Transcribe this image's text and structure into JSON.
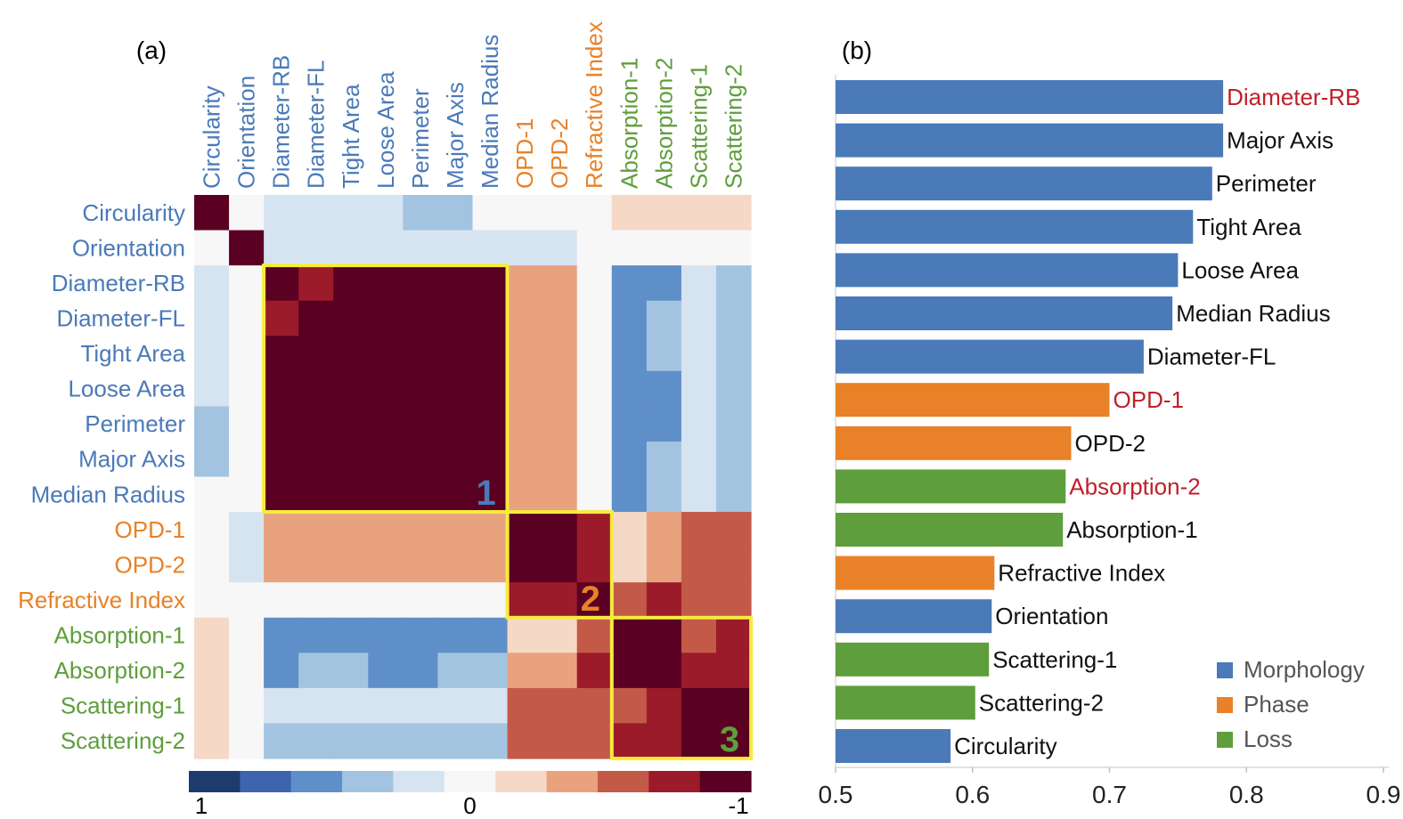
{
  "colors": {
    "morphology": "#4a7ab8",
    "phase": "#e88127",
    "loss": "#5e9e3c",
    "highlight_label": "#c01f2b",
    "box": "#f6ec3c",
    "scale": [
      "#1e3b6e",
      "#3e64ae",
      "#5f8fc8",
      "#a3c4e0",
      "#d6e4f1",
      "#f7f7f7",
      "#f6d8c6",
      "#e8a37e",
      "#c35a48",
      "#9b1b2a",
      "#5a0022"
    ]
  },
  "chart_data": [
    {
      "panel_label": "(a)",
      "type": "heatmap",
      "features": [
        {
          "name": "Circularity",
          "group": "morphology"
        },
        {
          "name": "Orientation",
          "group": "morphology"
        },
        {
          "name": "Diameter-RB",
          "group": "morphology"
        },
        {
          "name": "Diameter-FL",
          "group": "morphology"
        },
        {
          "name": "Tight Area",
          "group": "morphology"
        },
        {
          "name": "Loose Area",
          "group": "morphology"
        },
        {
          "name": "Perimeter",
          "group": "morphology"
        },
        {
          "name": "Major Axis",
          "group": "morphology"
        },
        {
          "name": "Median Radius",
          "group": "morphology"
        },
        {
          "name": "OPD-1",
          "group": "phase"
        },
        {
          "name": "OPD-2",
          "group": "phase"
        },
        {
          "name": "Refractive Index",
          "group": "phase"
        },
        {
          "name": "Absorption-1",
          "group": "loss"
        },
        {
          "name": "Absorption-2",
          "group": "loss"
        },
        {
          "name": "Scattering-1",
          "group": "loss"
        },
        {
          "name": "Scattering-2",
          "group": "loss"
        }
      ],
      "matrix": [
        [
          -1.0,
          0.0,
          0.2,
          0.2,
          0.2,
          0.2,
          0.4,
          0.4,
          0.0,
          0.0,
          0.0,
          0.0,
          -0.2,
          -0.2,
          -0.2,
          -0.2
        ],
        [
          0.0,
          -1.0,
          0.2,
          0.2,
          0.2,
          0.2,
          0.2,
          0.2,
          0.2,
          0.2,
          0.2,
          0.0,
          0.0,
          0.0,
          0.0,
          0.0
        ],
        [
          0.2,
          0.0,
          -1.0,
          -0.8,
          -1.0,
          -1.0,
          -1.0,
          -1.0,
          -1.0,
          -0.4,
          -0.4,
          0.0,
          0.6,
          0.6,
          0.2,
          0.4
        ],
        [
          0.2,
          0.0,
          -0.8,
          -1.0,
          -1.0,
          -1.0,
          -1.0,
          -1.0,
          -1.0,
          -0.4,
          -0.4,
          0.0,
          0.6,
          0.4,
          0.2,
          0.4
        ],
        [
          0.2,
          0.0,
          -1.0,
          -1.0,
          -1.0,
          -1.0,
          -1.0,
          -1.0,
          -1.0,
          -0.4,
          -0.4,
          0.0,
          0.6,
          0.4,
          0.2,
          0.4
        ],
        [
          0.2,
          0.0,
          -1.0,
          -1.0,
          -1.0,
          -1.0,
          -1.0,
          -1.0,
          -1.0,
          -0.4,
          -0.4,
          0.0,
          0.6,
          0.6,
          0.2,
          0.4
        ],
        [
          0.4,
          0.0,
          -1.0,
          -1.0,
          -1.0,
          -1.0,
          -1.0,
          -1.0,
          -1.0,
          -0.4,
          -0.4,
          0.0,
          0.6,
          0.6,
          0.2,
          0.4
        ],
        [
          0.4,
          0.0,
          -1.0,
          -1.0,
          -1.0,
          -1.0,
          -1.0,
          -1.0,
          -1.0,
          -0.4,
          -0.4,
          0.0,
          0.6,
          0.4,
          0.2,
          0.4
        ],
        [
          0.0,
          0.0,
          -1.0,
          -1.0,
          -1.0,
          -1.0,
          -1.0,
          -1.0,
          -1.0,
          -0.4,
          -0.4,
          0.0,
          0.6,
          0.4,
          0.2,
          0.4
        ],
        [
          0.0,
          0.2,
          -0.4,
          -0.4,
          -0.4,
          -0.4,
          -0.4,
          -0.4,
          -0.4,
          -1.0,
          -1.0,
          -0.8,
          -0.2,
          -0.4,
          -0.6,
          -0.6
        ],
        [
          0.0,
          0.2,
          -0.4,
          -0.4,
          -0.4,
          -0.4,
          -0.4,
          -0.4,
          -0.4,
          -1.0,
          -1.0,
          -0.8,
          -0.2,
          -0.4,
          -0.6,
          -0.6
        ],
        [
          0.0,
          0.0,
          0.0,
          0.0,
          0.0,
          0.0,
          0.0,
          0.0,
          0.0,
          -0.8,
          -0.8,
          -1.0,
          -0.6,
          -0.8,
          -0.6,
          -0.6
        ],
        [
          -0.2,
          0.0,
          0.6,
          0.6,
          0.6,
          0.6,
          0.6,
          0.6,
          0.6,
          -0.2,
          -0.2,
          -0.6,
          -1.0,
          -1.0,
          -0.6,
          -0.8
        ],
        [
          -0.2,
          0.0,
          0.6,
          0.4,
          0.4,
          0.6,
          0.6,
          0.4,
          0.4,
          -0.4,
          -0.4,
          -0.8,
          -1.0,
          -1.0,
          -0.8,
          -0.8
        ],
        [
          -0.2,
          0.0,
          0.2,
          0.2,
          0.2,
          0.2,
          0.2,
          0.2,
          0.2,
          -0.6,
          -0.6,
          -0.6,
          -0.6,
          -0.8,
          -1.0,
          -1.0
        ],
        [
          -0.2,
          0.0,
          0.4,
          0.4,
          0.4,
          0.4,
          0.4,
          0.4,
          0.4,
          -0.6,
          -0.6,
          -0.6,
          -0.8,
          -0.8,
          -1.0,
          -1.0
        ]
      ],
      "clusters": [
        {
          "label": "1",
          "from": 2,
          "to": 8,
          "group": "morphology"
        },
        {
          "label": "2",
          "from": 9,
          "to": 11,
          "group": "phase"
        },
        {
          "label": "3",
          "from": 12,
          "to": 15,
          "group": "loss"
        }
      ],
      "colorbar_ticks": [
        "1",
        "0",
        "-1"
      ]
    },
    {
      "panel_label": "(b)",
      "type": "bar",
      "orientation": "horizontal",
      "xlim": [
        0.5,
        0.9
      ],
      "xticks": [
        "0.5",
        "0.6",
        "0.7",
        "0.8",
        "0.9"
      ],
      "bars": [
        {
          "label": "Diameter-RB",
          "value": 0.783,
          "group": "morphology",
          "highlight": true
        },
        {
          "label": "Major Axis",
          "value": 0.783,
          "group": "morphology",
          "highlight": false
        },
        {
          "label": "Perimeter",
          "value": 0.775,
          "group": "morphology",
          "highlight": false
        },
        {
          "label": "Tight Area",
          "value": 0.761,
          "group": "morphology",
          "highlight": false
        },
        {
          "label": "Loose Area",
          "value": 0.75,
          "group": "morphology",
          "highlight": false
        },
        {
          "label": "Median Radius",
          "value": 0.746,
          "group": "morphology",
          "highlight": false
        },
        {
          "label": "Diameter-FL",
          "value": 0.725,
          "group": "morphology",
          "highlight": false
        },
        {
          "label": "OPD-1",
          "value": 0.7,
          "group": "phase",
          "highlight": true
        },
        {
          "label": "OPD-2",
          "value": 0.672,
          "group": "phase",
          "highlight": false
        },
        {
          "label": "Absorption-2",
          "value": 0.668,
          "group": "loss",
          "highlight": true
        },
        {
          "label": "Absorption-1",
          "value": 0.666,
          "group": "loss",
          "highlight": false
        },
        {
          "label": "Refractive Index",
          "value": 0.616,
          "group": "phase",
          "highlight": false
        },
        {
          "label": "Orientation",
          "value": 0.614,
          "group": "morphology",
          "highlight": false
        },
        {
          "label": "Scattering-1",
          "value": 0.612,
          "group": "loss",
          "highlight": false
        },
        {
          "label": "Scattering-2",
          "value": 0.602,
          "group": "loss",
          "highlight": false
        },
        {
          "label": "Circularity",
          "value": 0.584,
          "group": "morphology",
          "highlight": false
        }
      ],
      "legend": [
        {
          "name": "Morphology",
          "group": "morphology"
        },
        {
          "name": "Phase",
          "group": "phase"
        },
        {
          "name": "Loss",
          "group": "loss"
        }
      ],
      "legend_position": "bottom-right"
    }
  ]
}
